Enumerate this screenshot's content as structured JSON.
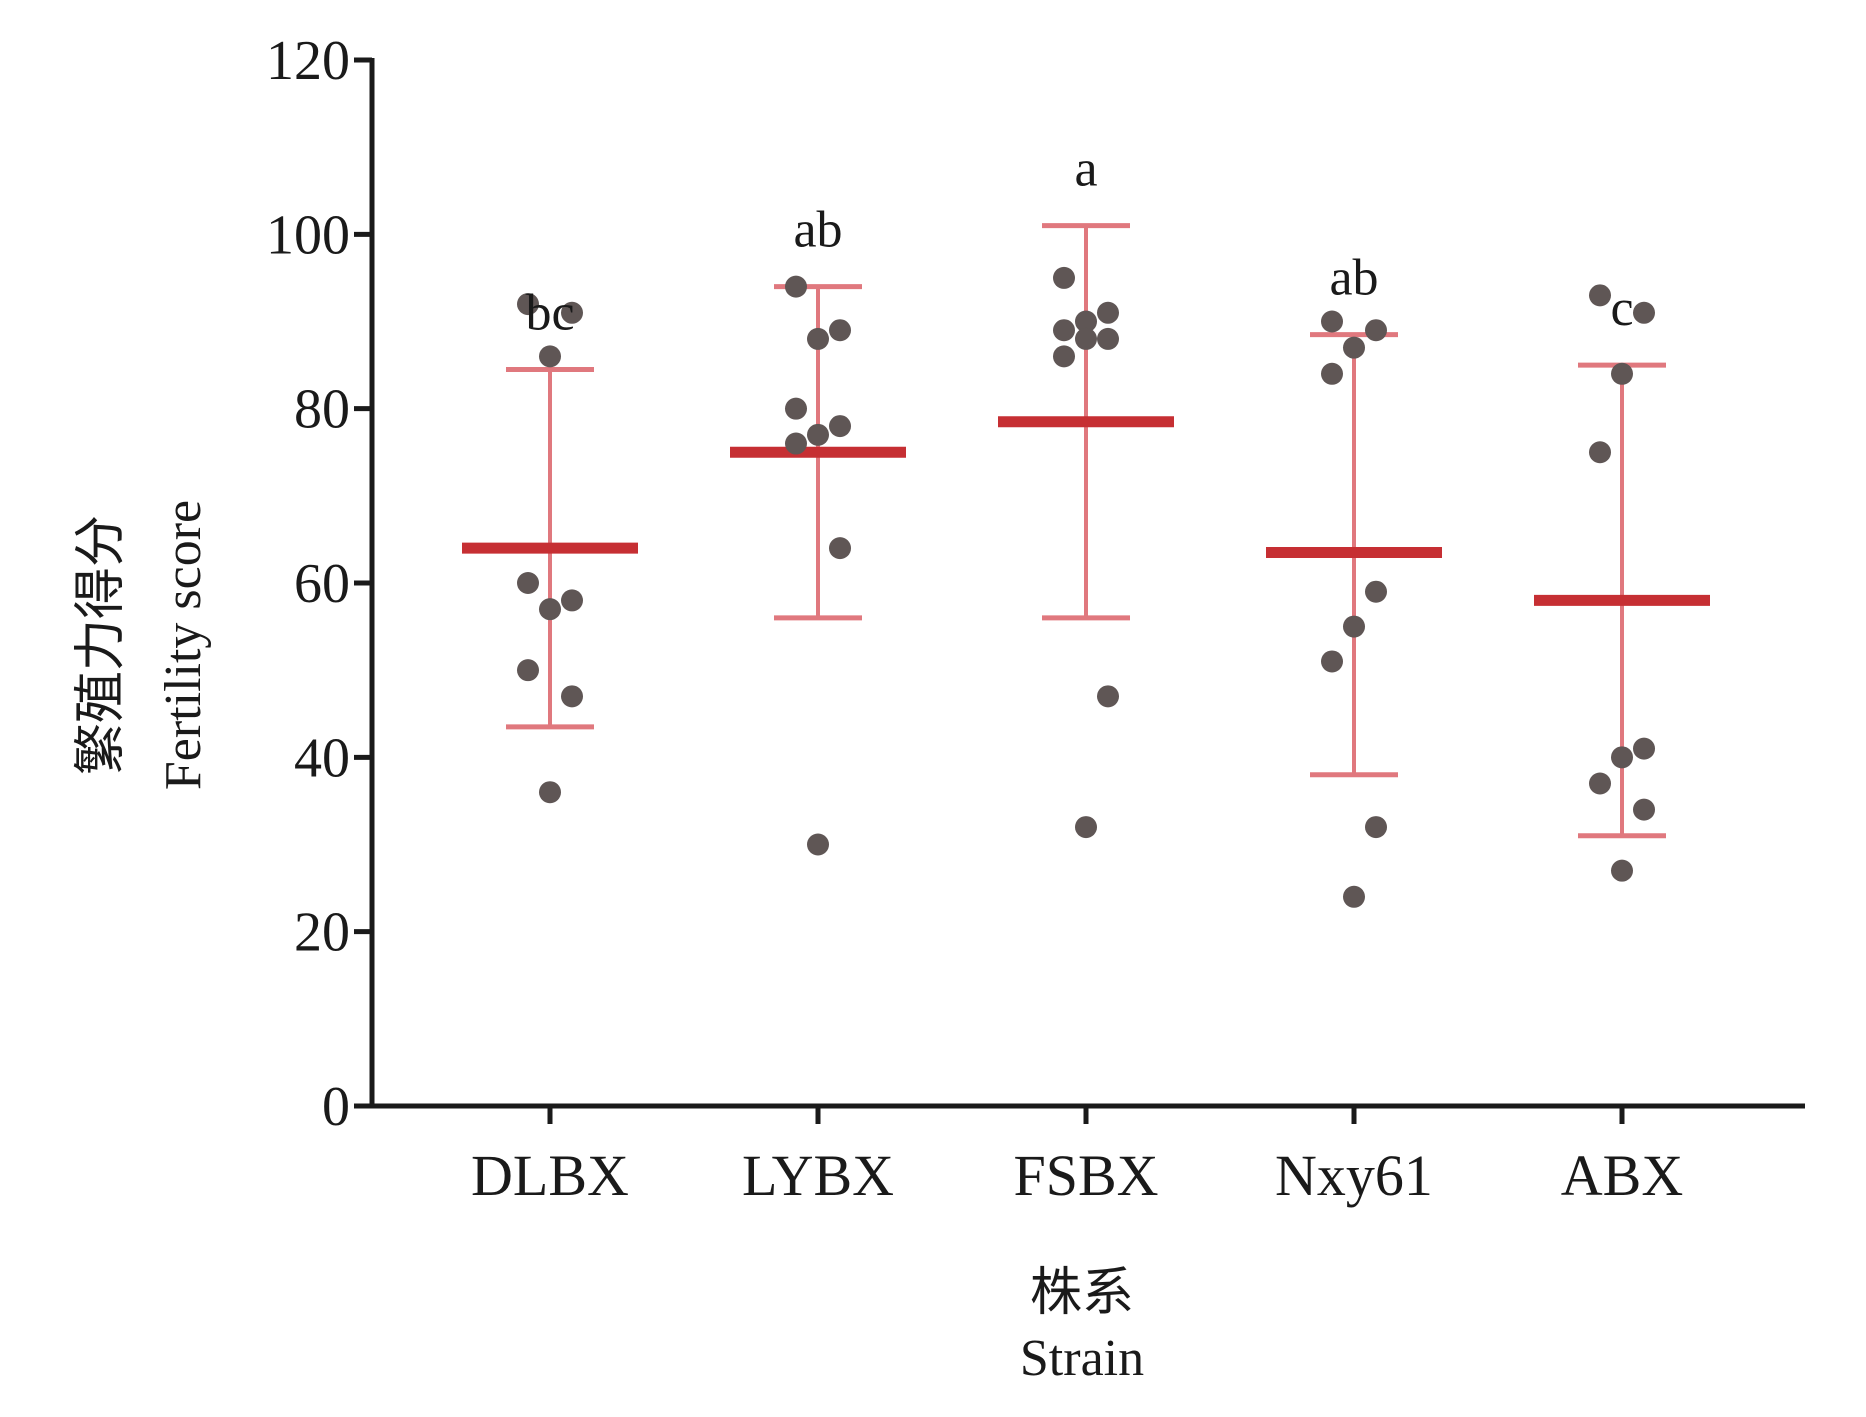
{
  "chart_data": {
    "type": "scatter",
    "title": "",
    "xlabel_lines": [
      "株系",
      "Strain"
    ],
    "ylabel_lines": [
      "繁殖力得分",
      "Fertility score"
    ],
    "ylim": [
      0,
      120
    ],
    "yticks": [
      "0",
      "20",
      "40",
      "60",
      "80",
      "100",
      "120"
    ],
    "grid": false,
    "colors": {
      "points": "#5f5655",
      "mean": "#c62f33",
      "errorbar": "#e0787e",
      "axis": "#1a1a1a"
    },
    "groups": [
      {
        "category": "DLBX",
        "significance": "bc",
        "mean": 64,
        "sd_low": 43.5,
        "sd_high": 84.5,
        "points": [
          92,
          91,
          86,
          60,
          58,
          57,
          50,
          47,
          36
        ]
      },
      {
        "category": "LYBX",
        "significance": "ab",
        "mean": 75,
        "sd_low": 56,
        "sd_high": 94,
        "points": [
          94,
          89,
          88,
          80,
          78,
          77,
          76,
          64,
          30
        ]
      },
      {
        "category": "FSBX",
        "significance": "a",
        "mean": 78.5,
        "sd_low": 56,
        "sd_high": 101,
        "points": [
          95,
          91,
          90,
          89,
          88,
          88,
          86,
          47,
          32
        ]
      },
      {
        "category": "Nxy61",
        "significance": "ab",
        "mean": 63.5,
        "sd_low": 38,
        "sd_high": 88.5,
        "points": [
          90,
          89,
          87,
          84,
          59,
          55,
          51,
          32,
          24
        ]
      },
      {
        "category": "ABX",
        "significance": "c",
        "mean": 58,
        "sd_low": 31,
        "sd_high": 85,
        "points": [
          93,
          91,
          84,
          75,
          41,
          40,
          37,
          34,
          27
        ]
      }
    ]
  }
}
